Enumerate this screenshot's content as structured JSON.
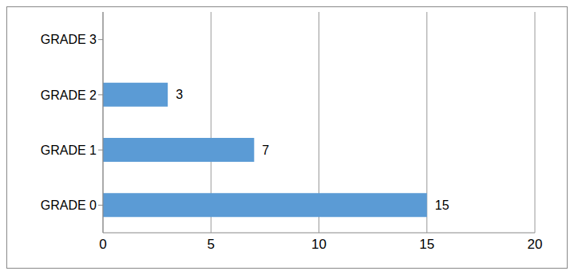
{
  "chart_data": {
    "type": "bar",
    "orientation": "horizontal",
    "categories": [
      "GRADE 0",
      "GRADE 1",
      "GRADE 2",
      "GRADE 3"
    ],
    "values": [
      15,
      7,
      3,
      0
    ],
    "color": "#5b9bd5",
    "xlim": [
      0,
      20
    ],
    "xticks": [
      0,
      5,
      10,
      15,
      20
    ],
    "grid": true,
    "data_labels": true
  }
}
